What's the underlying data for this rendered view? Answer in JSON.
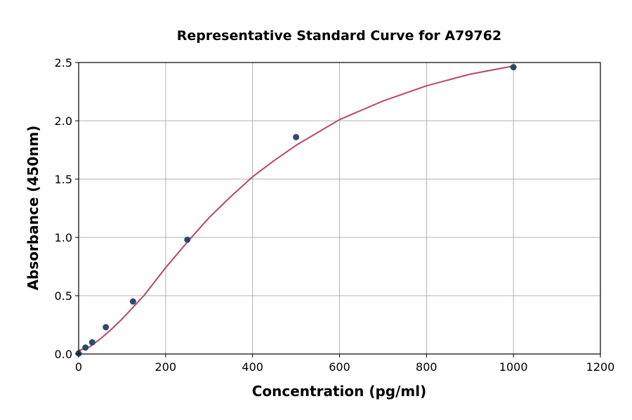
{
  "chart_data": {
    "type": "scatter",
    "title": "Representative Standard Curve for A79762",
    "xlabel": "Concentration (pg/ml)",
    "ylabel": "Absorbance (450nm)",
    "xlim": [
      0,
      1200
    ],
    "ylim": [
      0,
      2.5
    ],
    "xticks": [
      "0",
      "200",
      "400",
      "600",
      "800",
      "1000",
      "1200"
    ],
    "yticks": [
      "0.0",
      "0.5",
      "1.0",
      "1.5",
      "2.0",
      "2.5"
    ],
    "grid": true,
    "points": {
      "x": [
        0,
        15.6,
        31.25,
        62.5,
        125,
        250,
        500,
        1000
      ],
      "y": [
        0.005,
        0.055,
        0.1,
        0.23,
        0.45,
        0.98,
        1.86,
        2.46
      ],
      "color": "#2d4a6b"
    },
    "fit_curve": {
      "x": [
        0,
        25,
        50,
        75,
        100,
        125,
        150,
        200,
        250,
        300,
        350,
        400,
        450,
        500,
        600,
        700,
        800,
        900,
        1000
      ],
      "y": [
        0.03,
        0.06,
        0.13,
        0.21,
        0.3,
        0.4,
        0.5,
        0.74,
        0.96,
        1.17,
        1.35,
        1.52,
        1.66,
        1.79,
        2.01,
        2.17,
        2.3,
        2.4,
        2.47
      ],
      "color": "#b5476b"
    }
  }
}
